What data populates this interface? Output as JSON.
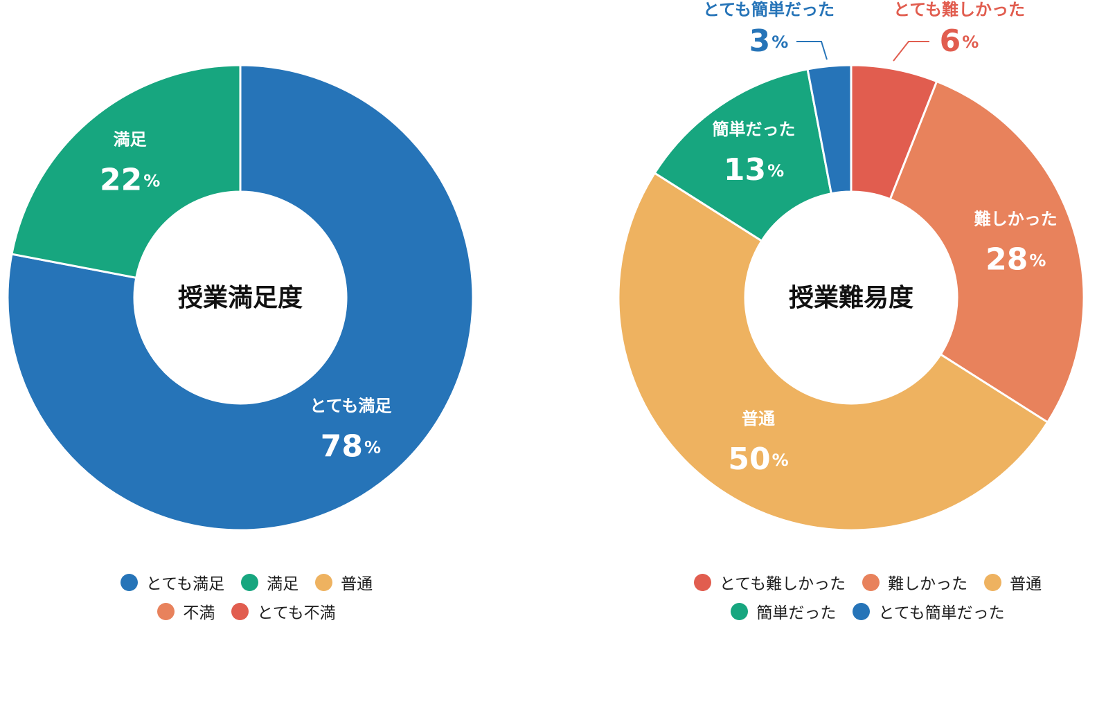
{
  "chart_data": [
    {
      "type": "pie",
      "title": "授業満足度",
      "unit": "%",
      "slices": [
        {
          "name": "とても満足",
          "value": 78,
          "color": "#2674b8",
          "label": "とても満足"
        },
        {
          "name": "満足",
          "value": 22,
          "color": "#17a67f",
          "label": "満足"
        },
        {
          "name": "普通",
          "value": 0,
          "color": "#eeb260",
          "label": ""
        },
        {
          "name": "不満",
          "value": 0,
          "color": "#e8825c",
          "label": ""
        },
        {
          "name": "とても不満",
          "value": 0,
          "color": "#e15d4f",
          "label": ""
        }
      ],
      "legend": {
        "placement": "bottom",
        "rows": [
          [
            "とても満足",
            "満足",
            "普通"
          ],
          [
            "不満",
            "とても不満"
          ]
        ]
      }
    },
    {
      "type": "pie",
      "title": "授業難易度",
      "unit": "%",
      "slices": [
        {
          "name": "とても難しかった",
          "value": 6,
          "color": "#e15d4f",
          "label": "とても難しかった"
        },
        {
          "name": "難しかった",
          "value": 28,
          "color": "#e8825c",
          "label": "難しかった"
        },
        {
          "name": "普通",
          "value": 50,
          "color": "#eeb260",
          "label": "普通"
        },
        {
          "name": "簡単だった",
          "value": 13,
          "color": "#17a67f",
          "label": "簡単だった"
        },
        {
          "name": "とても簡単だった",
          "value": 3,
          "color": "#2674b8",
          "label": "とても簡単だった"
        }
      ],
      "legend": {
        "placement": "bottom",
        "rows": [
          [
            "とても難しかった",
            "難しかった",
            "普通"
          ],
          [
            "簡単だった",
            "とても簡単だった"
          ]
        ]
      }
    }
  ]
}
